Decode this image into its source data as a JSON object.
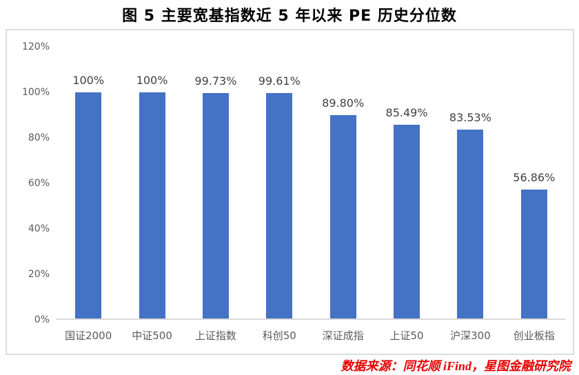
{
  "title": "图 5  主要宽基指数近 5 年以来 PE 历史分位数",
  "chart_data": {
    "type": "bar",
    "title": "图 5  主要宽基指数近 5 年以来 PE 历史分位数",
    "categories": [
      "国证2000",
      "中证500",
      "上证指数",
      "科创50",
      "深证成指",
      "上证50",
      "沪深300",
      "创业板指"
    ],
    "values": [
      100,
      100,
      99.73,
      99.61,
      89.8,
      85.49,
      83.53,
      56.86
    ],
    "value_labels": [
      "100%",
      "100%",
      "99.73%",
      "99.61%",
      "89.80%",
      "85.49%",
      "83.53%",
      "56.86%"
    ],
    "xlabel": "",
    "ylabel": "",
    "ylim": [
      0,
      120
    ],
    "ytick_values": [
      120,
      100,
      80,
      60,
      40,
      20,
      0
    ],
    "ytick_labels": [
      "120%",
      "100%",
      "80%",
      "60%",
      "40%",
      "20%",
      "0%"
    ],
    "grid": false,
    "legend_position": "none",
    "bar_color": "#4472C4",
    "axis_label_color": "#595959",
    "value_label_color": "#404040"
  },
  "footer": {
    "source_text": "数据来源：同花顺 iFind，星图金融研究院",
    "color": "#E60000"
  }
}
